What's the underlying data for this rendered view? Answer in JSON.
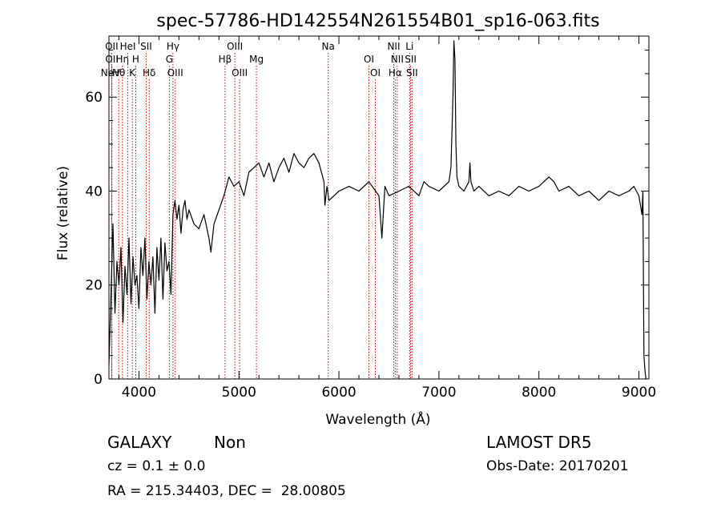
{
  "chart_data": {
    "type": "line",
    "title": "spec-57786-HD142554N261554B01_sp16-063.fits",
    "xlabel": "Wavelength (Å)",
    "ylabel": "Flux (relative)",
    "xlim": [
      3700,
      9100
    ],
    "ylim": [
      0,
      73
    ],
    "x_ticks": [
      4000,
      5000,
      6000,
      7000,
      8000,
      9000
    ],
    "y_ticks": [
      0,
      20,
      40,
      60
    ],
    "grid": false,
    "legend": "none",
    "line_color": "#000000",
    "marker_color": "#cc0000",
    "series": [
      {
        "x": [
          3700,
          3720,
          3740,
          3760,
          3780,
          3800,
          3820,
          3840,
          3860,
          3880,
          3900,
          3920,
          3940,
          3960,
          3980,
          4000,
          4020,
          4040,
          4060,
          4080,
          4100,
          4120,
          4140,
          4160,
          4180,
          4200,
          4220,
          4240,
          4260,
          4280,
          4300,
          4320,
          4340,
          4360,
          4380,
          4400,
          4420,
          4440,
          4460,
          4480,
          4500,
          4550,
          4600,
          4650,
          4700,
          4720,
          4750,
          4800,
          4850,
          4900,
          4950,
          5000,
          5050,
          5100,
          5150,
          5200,
          5250,
          5300,
          5350,
          5400,
          5450,
          5500,
          5550,
          5600,
          5650,
          5700,
          5750,
          5800,
          5850,
          5860,
          5880,
          5900,
          6000,
          6100,
          6200,
          6300,
          6400,
          6430,
          6460,
          6500,
          6600,
          6700,
          6800,
          6850,
          6900,
          7000,
          7100,
          7120,
          7140,
          7150,
          7160,
          7170,
          7180,
          7200,
          7250,
          7300,
          7310,
          7320,
          7350,
          7400,
          7500,
          7600,
          7700,
          7800,
          7900,
          8000,
          8100,
          8150,
          8200,
          8300,
          8400,
          8500,
          8600,
          8700,
          8800,
          8900,
          8950,
          9000,
          9030,
          9040,
          9050,
          9060,
          9070
        ],
        "y": [
          3,
          18,
          33,
          14,
          25,
          20,
          28,
          12,
          24,
          18,
          30,
          16,
          26,
          20,
          22,
          15,
          28,
          22,
          30,
          17,
          25,
          20,
          26,
          14,
          28,
          21,
          30,
          17,
          29,
          23,
          25,
          18,
          35,
          38,
          34,
          37,
          31,
          36,
          38,
          34,
          36,
          33,
          32,
          35,
          30,
          27,
          33,
          36,
          39,
          43,
          41,
          42,
          39,
          44,
          45,
          46,
          43,
          46,
          42,
          45,
          47,
          44,
          48,
          46,
          45,
          47,
          48,
          46,
          42,
          37,
          41,
          38,
          40,
          41,
          40,
          42,
          39,
          30,
          41,
          39,
          40,
          41,
          39,
          42,
          41,
          40,
          42,
          45,
          60,
          72,
          68,
          50,
          43,
          41,
          40,
          42,
          46,
          42,
          40,
          41,
          39,
          40,
          39,
          41,
          40,
          41,
          43,
          42,
          40,
          41,
          39,
          40,
          38,
          40,
          39,
          40,
          41,
          39,
          35,
          40,
          5,
          2,
          0
        ]
      }
    ],
    "lines": [
      {
        "label": "NeV",
        "x": 3426,
        "row": 3
      },
      {
        "label": "OII",
        "x": 3727,
        "row": 1
      },
      {
        "label": "OII",
        "x": 3729,
        "row": 2
      },
      {
        "label": "Hθ",
        "x": 3798,
        "row": 3
      },
      {
        "label": "Hη",
        "x": 3835,
        "row": 2
      },
      {
        "label": "HeI",
        "x": 3889,
        "row": 1
      },
      {
        "label": "K",
        "x": 3934,
        "row": 3
      },
      {
        "label": "H",
        "x": 3968,
        "row": 2
      },
      {
        "label": "SII",
        "x": 4072,
        "row": 1
      },
      {
        "label": "Hδ",
        "x": 4102,
        "row": 3
      },
      {
        "label": "Hγ",
        "x": 4340,
        "row": 1
      },
      {
        "label": "G",
        "x": 4304,
        "row": 2
      },
      {
        "label": "OIII",
        "x": 4363,
        "row": 3
      },
      {
        "label": "Hβ",
        "x": 4861,
        "row": 2
      },
      {
        "label": "OIII",
        "x": 4959,
        "row": 1
      },
      {
        "label": "OIII",
        "x": 5007,
        "row": 3
      },
      {
        "label": "Mg",
        "x": 5175,
        "row": 2
      },
      {
        "label": "Na",
        "x": 5893,
        "row": 1
      },
      {
        "label": "OI",
        "x": 6300,
        "row": 2
      },
      {
        "label": "OI",
        "x": 6364,
        "row": 3
      },
      {
        "label": "NII",
        "x": 6548,
        "row": 1
      },
      {
        "label": "Hα",
        "x": 6563,
        "row": 3
      },
      {
        "label": "NII",
        "x": 6583,
        "row": 2
      },
      {
        "label": "Li",
        "x": 6707,
        "row": 1
      },
      {
        "label": "SII",
        "x": 6717,
        "row": 2
      },
      {
        "label": "SII",
        "x": 6731,
        "row": 3
      }
    ]
  },
  "info": {
    "object_class": "GALAXY",
    "subclass": "Non",
    "cz": "cz = 0.1 ± 0.0",
    "coords": "RA = 215.34403, DEC =  28.00805",
    "survey": "LAMOST DR5",
    "obs_date": "Obs-Date: 20170201"
  }
}
